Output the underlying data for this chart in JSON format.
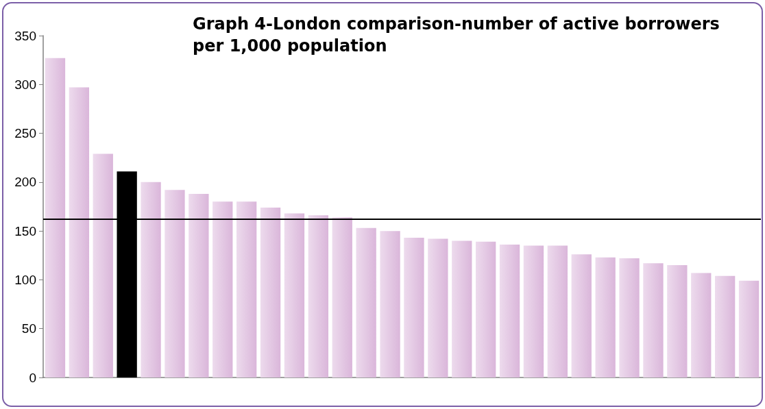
{
  "chart_data": {
    "type": "bar",
    "title": "Graph 4-London comparison-number of active borrowers per 1,000 population",
    "categories": [
      null,
      null,
      null,
      null,
      null,
      null,
      null,
      null,
      null,
      null,
      null,
      null,
      null,
      null,
      null,
      null,
      null,
      null,
      null,
      null,
      null,
      null,
      null,
      null,
      null,
      null,
      null,
      null,
      null,
      null
    ],
    "values": [
      327,
      297,
      229,
      211,
      200,
      192,
      188,
      180,
      180,
      174,
      168,
      166,
      164,
      153,
      150,
      143,
      142,
      140,
      139,
      136,
      135,
      135,
      126,
      123,
      122,
      117,
      115,
      107,
      104,
      99
    ],
    "colors": [
      "#dab6da",
      "#dab6da",
      "#dab6da",
      "#000000",
      "#dab6da",
      "#dab6da",
      "#dab6da",
      "#dab6da",
      "#dab6da",
      "#dab6da",
      "#dab6da",
      "#dab6da",
      "#dab6da",
      "#dab6da",
      "#dab6da",
      "#dab6da",
      "#dab6da",
      "#dab6da",
      "#dab6da",
      "#dab6da",
      "#dab6da",
      "#dab6da",
      "#dab6da",
      "#dab6da",
      "#dab6da",
      "#dab6da",
      "#dab6da",
      "#dab6da",
      "#dab6da",
      "#dab6da"
    ],
    "ylim": [
      0,
      350
    ],
    "yticks": [
      0,
      50,
      100,
      150,
      200,
      250,
      300,
      350
    ],
    "grid": false,
    "tick_labels": "y",
    "ref_lines": [
      {
        "axis": "y",
        "value": 162,
        "color": "#000000",
        "line_style": "solid"
      }
    ]
  }
}
